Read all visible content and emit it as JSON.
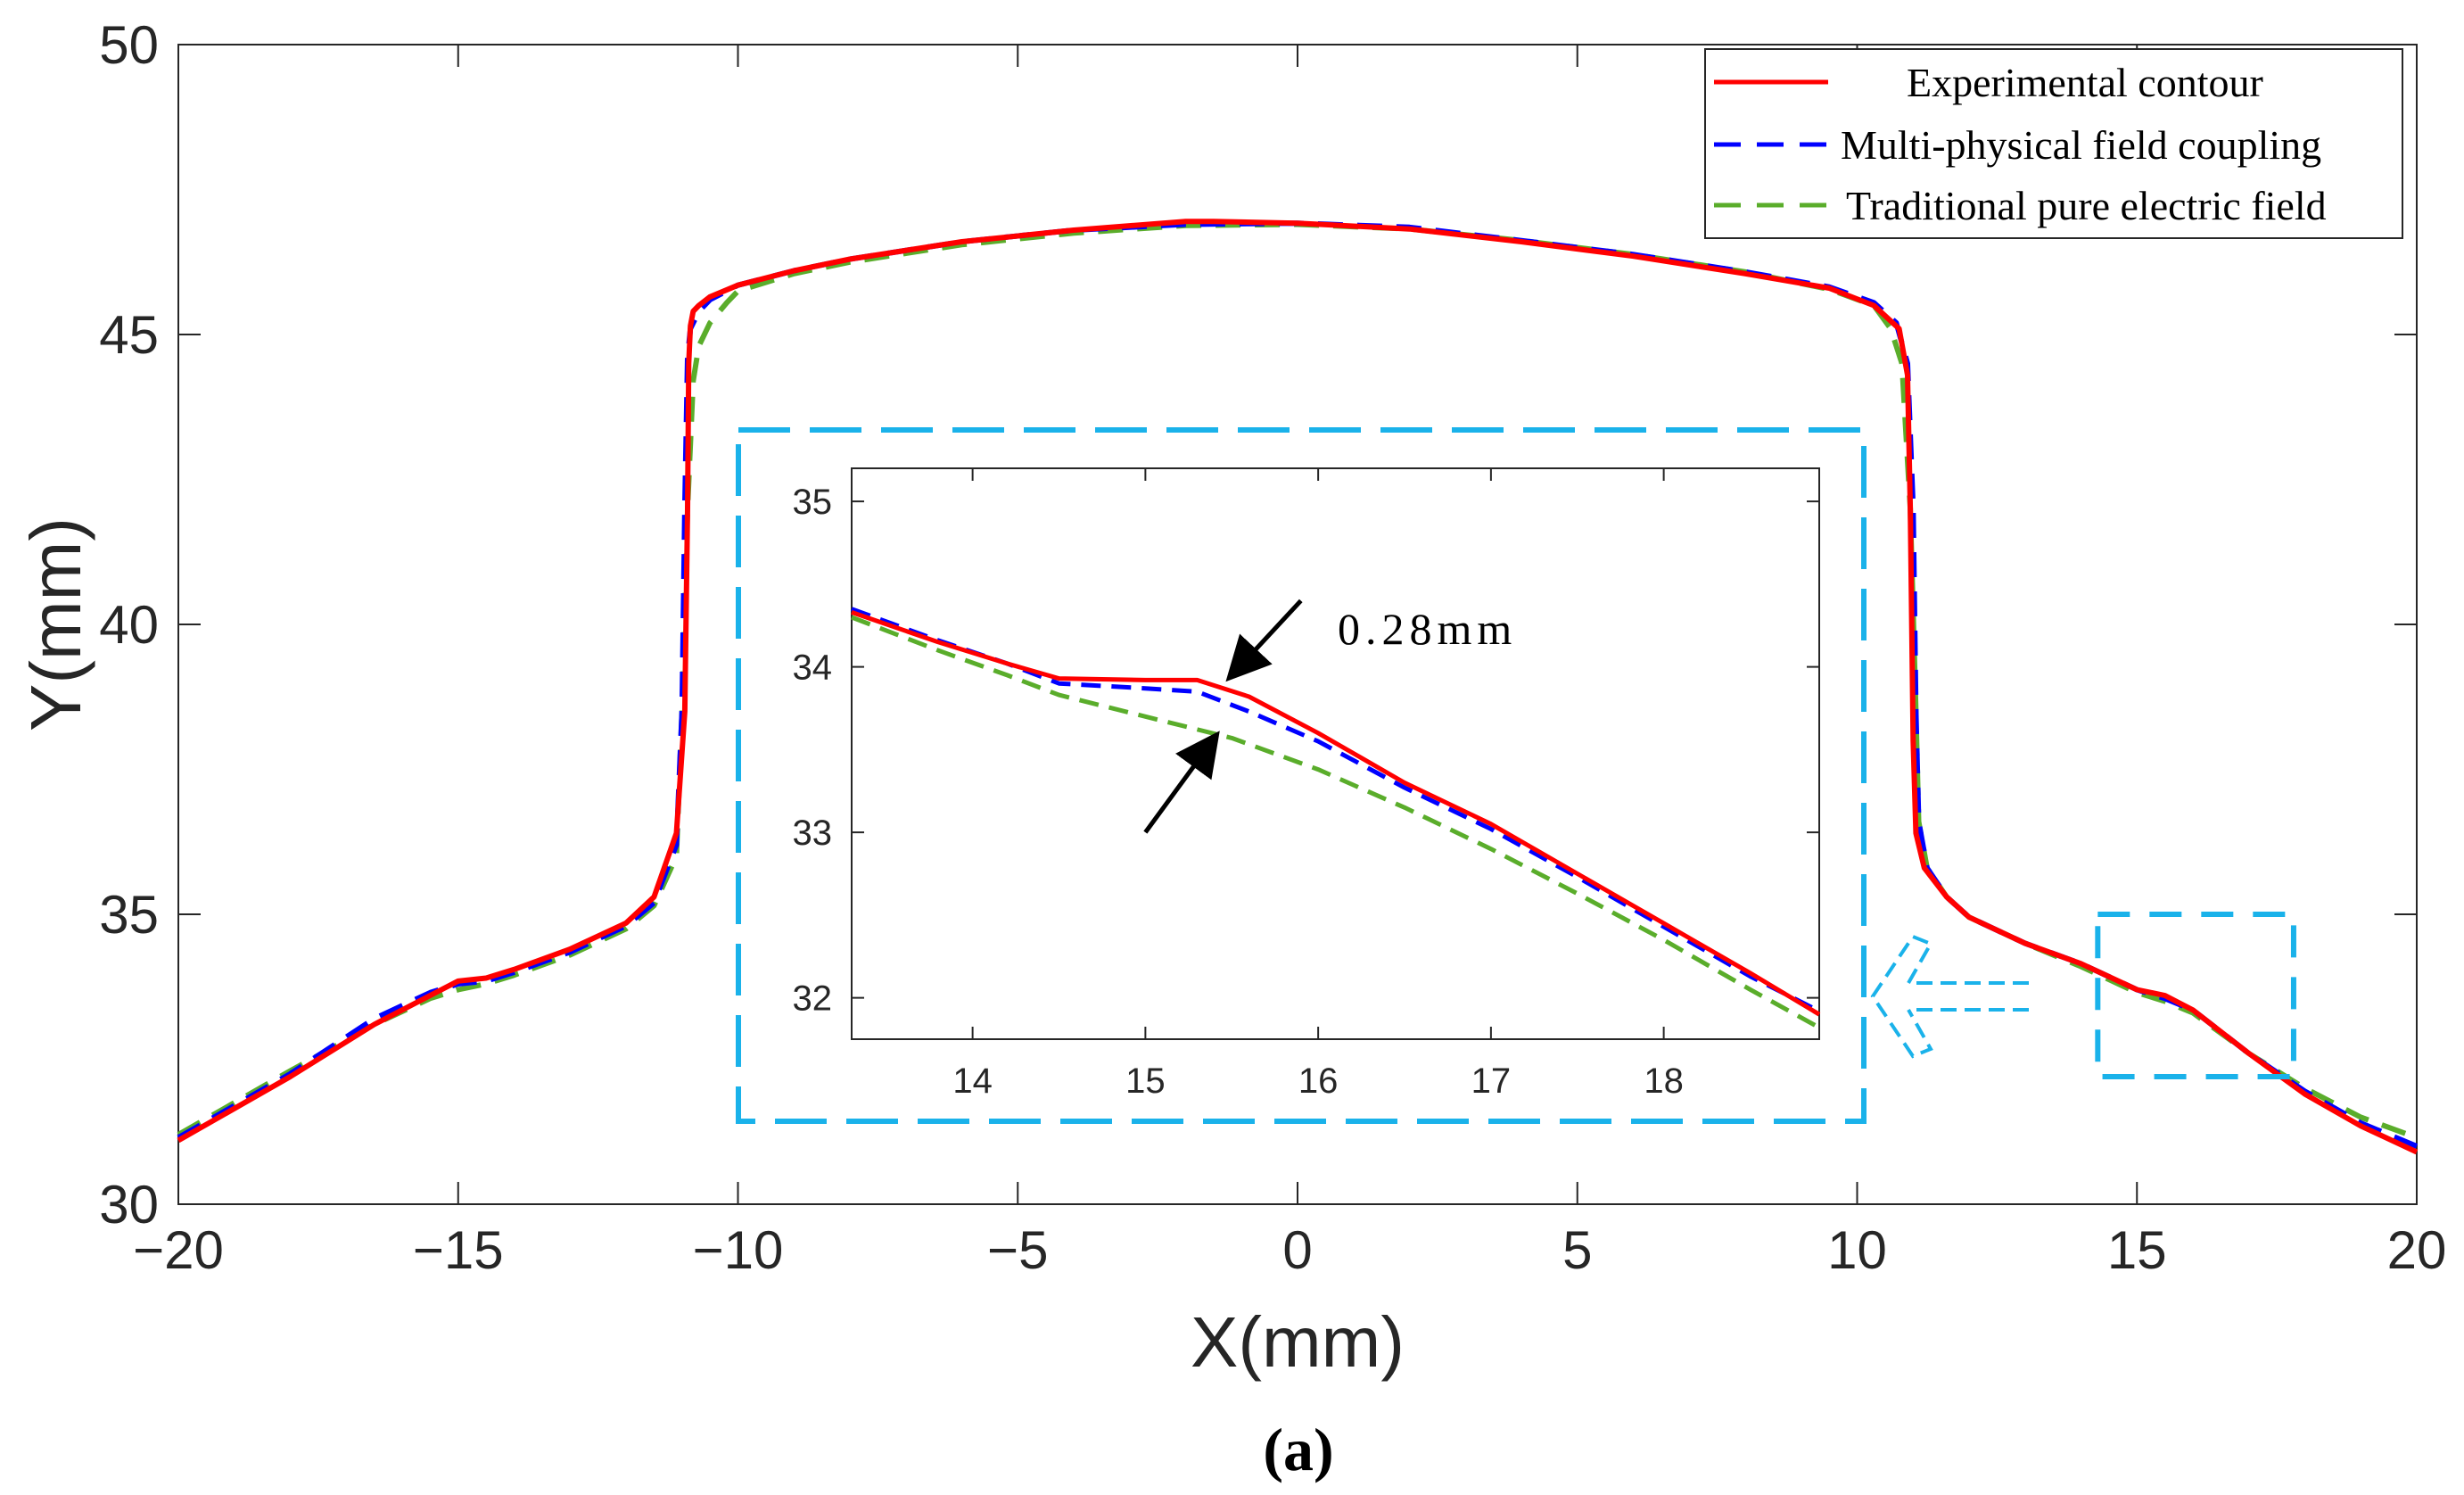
{
  "caption": "(a)",
  "chart_data": [
    {
      "type": "line",
      "panel": "main",
      "xlabel": "X(mm)",
      "ylabel": "Y(mm)",
      "xlim": [
        -20,
        20
      ],
      "ylim": [
        30,
        50
      ],
      "xticks": [
        -20,
        -15,
        -10,
        -5,
        0,
        5,
        10,
        15,
        20
      ],
      "xtick_labels": [
        "−20",
        "−15",
        "−10",
        "−5",
        "0",
        "5",
        "10",
        "15",
        "20"
      ],
      "yticks": [
        30,
        35,
        40,
        45,
        50
      ],
      "ytick_labels": [
        "30",
        "35",
        "40",
        "45",
        "50"
      ],
      "legend_position": "top-right",
      "series": [
        {
          "name": "Experimental contour",
          "color": "#ff0000",
          "style": "solid",
          "x": [
            -20,
            -18,
            -16.5,
            -15.5,
            -15,
            -14.5,
            -14,
            -13,
            -12,
            -11.5,
            -11.1,
            -10.95,
            -10.9,
            -10.88,
            -10.85,
            -10.8,
            -10.7,
            -10.5,
            -10,
            -9,
            -8,
            -6,
            -4,
            -2,
            -1.5,
            0,
            2,
            4,
            6,
            8,
            9.5,
            10.3,
            10.75,
            10.9,
            10.95,
            11,
            11.05,
            11.2,
            11.6,
            12,
            13,
            14,
            15,
            15.5,
            16,
            17,
            18,
            19,
            20
          ],
          "y": [
            31.1,
            32.2,
            33.1,
            33.6,
            33.85,
            33.9,
            34.05,
            34.4,
            34.85,
            35.3,
            36.4,
            38.5,
            42,
            44.5,
            45.15,
            45.4,
            45.5,
            45.65,
            45.85,
            46.1,
            46.3,
            46.6,
            46.8,
            46.95,
            46.95,
            46.92,
            46.82,
            46.6,
            46.35,
            46.05,
            45.8,
            45.5,
            45.1,
            44.3,
            42,
            38,
            36.4,
            35.8,
            35.3,
            34.95,
            34.5,
            34.15,
            33.7,
            33.6,
            33.35,
            32.6,
            31.9,
            31.35,
            30.9
          ]
        },
        {
          "name": "Multi-physical field coupling",
          "color": "#0000ff",
          "style": "dashed",
          "x": [
            -20,
            -18,
            -16.5,
            -15.5,
            -15,
            -14.5,
            -14,
            -13,
            -12,
            -11.5,
            -11.1,
            -11,
            -10.95,
            -10.9,
            -10.85,
            -10.7,
            -10.5,
            -10,
            -9,
            -8,
            -6,
            -4,
            -2,
            0,
            2,
            4,
            6,
            8,
            9.5,
            10.3,
            10.7,
            10.9,
            11,
            11.05,
            11.1,
            11.25,
            11.6,
            12,
            13,
            14,
            15,
            15.5,
            16,
            17,
            18,
            19,
            20
          ],
          "y": [
            31.15,
            32.25,
            33.2,
            33.65,
            33.8,
            33.85,
            34.0,
            34.35,
            34.8,
            35.2,
            36.2,
            38.5,
            42,
            44.6,
            45.1,
            45.4,
            45.6,
            45.85,
            46.1,
            46.3,
            46.6,
            46.8,
            46.9,
            46.92,
            46.85,
            46.62,
            46.38,
            46.08,
            45.82,
            45.55,
            45.2,
            44.5,
            42,
            38.5,
            36.6,
            35.8,
            35.3,
            34.95,
            34.5,
            34.15,
            33.7,
            33.55,
            33.35,
            32.6,
            31.95,
            31.4,
            31.0
          ]
        },
        {
          "name": "Traditional pure electric field",
          "color": "#5aad2b",
          "style": "dashed",
          "x": [
            -20,
            -18,
            -16.5,
            -15.5,
            -15,
            -14.5,
            -14,
            -13,
            -12,
            -11.5,
            -11.1,
            -11,
            -10.9,
            -10.8,
            -10.7,
            -10.5,
            -10.2,
            -10,
            -9,
            -8,
            -6,
            -4,
            -2,
            0,
            2,
            4,
            6,
            8,
            9.5,
            10.3,
            10.6,
            10.8,
            10.95,
            11.05,
            11.1,
            11.25,
            11.6,
            12,
            13,
            14,
            15,
            15.5,
            16,
            17,
            18,
            19,
            20
          ],
          "y": [
            31.2,
            32.3,
            33.1,
            33.55,
            33.7,
            33.8,
            33.95,
            34.3,
            34.75,
            35.15,
            36.0,
            38.5,
            42,
            44.2,
            44.8,
            45.2,
            45.55,
            45.75,
            46.05,
            46.25,
            46.55,
            46.75,
            46.88,
            46.9,
            46.82,
            46.62,
            46.38,
            46.08,
            45.78,
            45.5,
            45.1,
            44.5,
            42,
            38.5,
            36.6,
            35.8,
            35.3,
            34.95,
            34.5,
            34.1,
            33.65,
            33.5,
            33.3,
            32.6,
            32.0,
            31.5,
            31.15
          ]
        }
      ],
      "zoom_box": {
        "xlim": [
          14.3,
          17.8
        ],
        "ylim": [
          32.2,
          35
        ]
      }
    },
    {
      "type": "line",
      "panel": "inset",
      "xlim": [
        13.3,
        18.9
      ],
      "ylim": [
        31.75,
        35.2
      ],
      "xticks": [
        14,
        15,
        16,
        17,
        18
      ],
      "xtick_labels": [
        "14",
        "15",
        "16",
        "17",
        "18"
      ],
      "yticks": [
        32,
        33,
        34,
        35
      ],
      "ytick_labels": [
        "32",
        "33",
        "34",
        "35"
      ],
      "annotation": "0.28mm",
      "arrows": [
        {
          "from": [
            15.9,
            34.4
          ],
          "to": [
            15.5,
            33.95
          ]
        },
        {
          "from": [
            15.0,
            33.0
          ],
          "to": [
            15.4,
            33.57
          ]
        }
      ],
      "series": [
        {
          "name": "Experimental contour",
          "color": "#ff0000",
          "style": "solid",
          "x": [
            13.3,
            13.8,
            14.2,
            14.5,
            15.0,
            15.3,
            15.6,
            16.0,
            16.5,
            17.0,
            17.5,
            18.0,
            18.5,
            18.9
          ],
          "y": [
            34.33,
            34.15,
            34.02,
            33.93,
            33.92,
            33.92,
            33.82,
            33.6,
            33.3,
            33.05,
            32.75,
            32.45,
            32.15,
            31.9
          ]
        },
        {
          "name": "Multi-physical field coupling",
          "color": "#0000ff",
          "style": "dashed",
          "x": [
            13.3,
            13.8,
            14.2,
            14.5,
            15.0,
            15.3,
            15.6,
            16.0,
            16.5,
            17.0,
            17.5,
            18.0,
            18.5,
            18.9
          ],
          "y": [
            34.35,
            34.16,
            34.02,
            33.9,
            33.87,
            33.85,
            33.73,
            33.55,
            33.27,
            33.02,
            32.73,
            32.43,
            32.13,
            31.92
          ]
        },
        {
          "name": "Traditional pure electric field",
          "color": "#5aad2b",
          "style": "dashed",
          "x": [
            13.3,
            13.8,
            14.2,
            14.5,
            15.0,
            15.5,
            16.0,
            16.5,
            17.0,
            17.5,
            18.0,
            18.5,
            18.9
          ],
          "y": [
            34.3,
            34.1,
            33.95,
            33.83,
            33.7,
            33.57,
            33.38,
            33.15,
            32.9,
            32.63,
            32.35,
            32.05,
            31.82
          ]
        }
      ]
    }
  ]
}
